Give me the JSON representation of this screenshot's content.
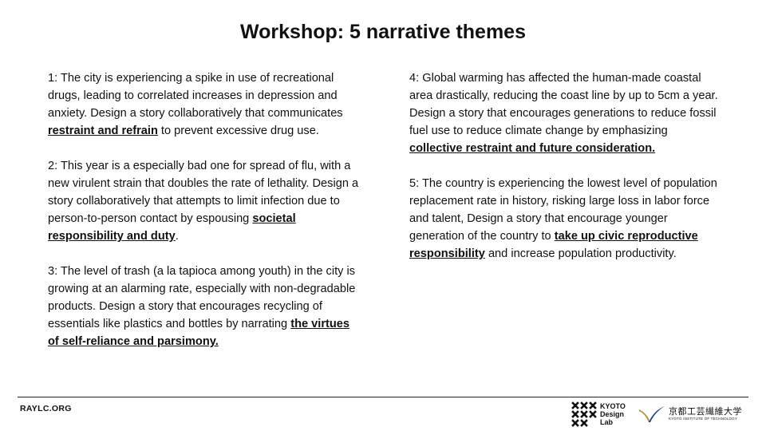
{
  "title": "Workshop: 5 narrative themes",
  "themes_left": [
    {
      "lead": "1: The city is experiencing a spike in use of recreational drugs, leading to correlated increases in depression and anxiety. Design a story collaboratively that communicates ",
      "emphasis": "restraint and refrain",
      "tail": " to prevent excessive drug use."
    },
    {
      "lead": "2: This year is a especially bad one for spread of flu, with a new virulent strain that doubles the rate of lethality. Design a story collaboratively  that attempts to limit infection due to person-to-person contact by espousing ",
      "emphasis": "societal responsibility and duty",
      "tail": "."
    },
    {
      "lead": "3: The level of trash (a la tapioca among youth) in the city is growing at an alarming rate, especially with non-degradable products. Design a story that encourages recycling of essentials like plastics and bottles by narrating ",
      "emphasis": "the virtues of self-reliance and parsimony.",
      "tail": ""
    }
  ],
  "themes_right": [
    {
      "lead": "4: Global warming has affected the human-made coastal area drastically, reducing the coast line by up to 5cm a year. Design a story that encourages generations to reduce fossil fuel use to reduce climate change by emphasizing ",
      "emphasis": "collective restraint and future consideration.",
      "tail": ""
    },
    {
      "lead": "5: The country is experiencing  the lowest level of population replacement rate in history, risking large loss in labor force and talent, Design a story that encourage younger generation of the country to ",
      "emphasis": "take up civic reproductive responsibility",
      "tail": " and increase population productivity."
    }
  ],
  "footer": {
    "site": "RAYLC.ORG",
    "lab_logo": {
      "line1": "KYOTO",
      "line2": "Design",
      "line3": "Lab"
    },
    "institute_logo": {
      "name_jp": "京都工芸繊維大学",
      "name_en": "KYOTO INSTITUTE OF TECHNOLOGY"
    }
  },
  "colors": {
    "kit_mark_gold": "#b08a3c",
    "kit_mark_blue": "#1f3f7a",
    "text": "#111111"
  }
}
